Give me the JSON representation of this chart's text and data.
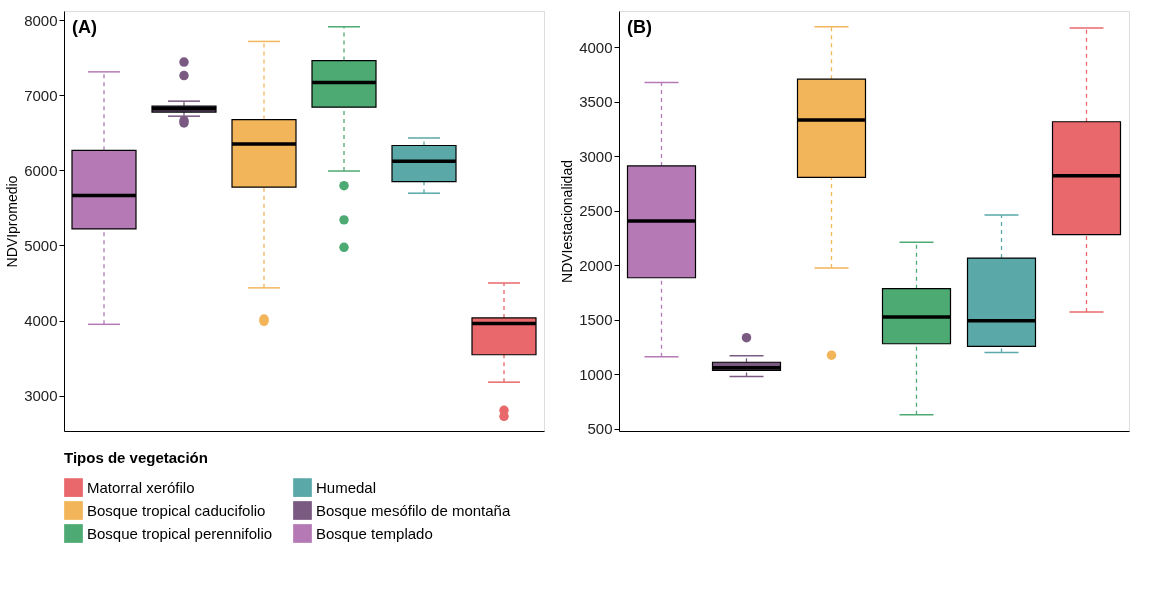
{
  "chart_data": [
    {
      "type": "box",
      "title": "(A)",
      "ylabel": "NDVIpromedio",
      "categories": [
        null,
        null,
        null,
        null,
        null,
        null
      ],
      "ylim": [
        2530,
        8120
      ],
      "yticks": [
        3000,
        4000,
        5000,
        6000,
        7000,
        8000
      ],
      "tick_labels": "y",
      "grid": false,
      "legend": "bottom",
      "legend_title": "Tipos de vegetación",
      "series": [
        {
          "name": "Matorral xerófilo",
          "color": "#e8686b",
          "boxes": [
            null,
            null,
            null,
            null,
            null,
            {
              "low": 3180,
              "q1": 3545,
              "median": 3960,
              "q3": 4035,
              "high": 4500,
              "outliers": [
                2805,
                2725
              ]
            }
          ]
        },
        {
          "name": "Bosque tropical caducifolio",
          "color": "#f2b55a",
          "boxes": [
            null,
            null,
            {
              "low": 4435,
              "q1": 5775,
              "median": 6350,
              "q3": 6675,
              "high": 7715,
              "outliers": [
                4020,
                3990
              ]
            },
            null,
            null,
            null
          ]
        },
        {
          "name": "Bosque tropical perennifolio",
          "color": "#4daa72",
          "boxes": [
            null,
            null,
            null,
            {
              "low": 5990,
              "q1": 6840,
              "median": 7170,
              "q3": 7460,
              "high": 7910,
              "outliers": [
                5795,
                5340,
                4975
              ]
            },
            null,
            null
          ]
        },
        {
          "name": "Humedal",
          "color": "#5aa8a8",
          "boxes": [
            null,
            null,
            null,
            null,
            {
              "low": 5695,
              "q1": 5850,
              "median": 6120,
              "q3": 6330,
              "high": 6430
            },
            null
          ]
        },
        {
          "name": "Bosque mesófilo de montaña",
          "color": "#7b5a82",
          "boxes": [
            null,
            {
              "low": 6720,
              "q1": 6775,
              "median": 6820,
              "q3": 6855,
              "high": 6920,
              "outliers": [
                7440,
                7260,
                6660,
                6630
              ]
            },
            null,
            null,
            null,
            null
          ]
        },
        {
          "name": "Bosque templado",
          "color": "#b57ab5",
          "boxes": [
            {
              "low": 3950,
              "q1": 5220,
              "median": 5665,
              "q3": 6265,
              "high": 7310
            },
            null,
            null,
            null,
            null,
            null
          ]
        }
      ]
    },
    {
      "type": "box",
      "title": "(B)",
      "ylabel": "NDVIestacionalidad",
      "categories": [
        null,
        null,
        null,
        null,
        null,
        null
      ],
      "ylim": [
        480,
        4330
      ],
      "yticks": [
        500,
        1000,
        1500,
        2000,
        2500,
        3000,
        3500,
        4000
      ],
      "tick_labels": "y",
      "grid": false,
      "series": [
        {
          "color": "#e8686b",
          "boxes": [
            null,
            null,
            null,
            null,
            null,
            {
              "low": 1570,
              "q1": 2280,
              "median": 2820,
              "q3": 3315,
              "high": 4175
            }
          ]
        },
        {
          "color": "#f2b55a",
          "boxes": [
            null,
            null,
            {
              "low": 1975,
              "q1": 2805,
              "median": 3330,
              "q3": 3705,
              "high": 4185,
              "outliers": [
                1175
              ]
            },
            null,
            null,
            null
          ]
        },
        {
          "color": "#4daa72",
          "boxes": [
            null,
            null,
            null,
            {
              "low": 630,
              "q1": 1280,
              "median": 1525,
              "q3": 1785,
              "high": 2210
            },
            null,
            null
          ]
        },
        {
          "color": "#5aa8a8",
          "boxes": [
            null,
            null,
            null,
            null,
            {
              "low": 1200,
              "q1": 1255,
              "median": 1490,
              "q3": 2065,
              "high": 2460
            },
            null
          ]
        },
        {
          "color": "#7b5a82",
          "boxes": [
            null,
            {
              "low": 980,
              "q1": 1035,
              "median": 1060,
              "q3": 1110,
              "high": 1170,
              "outliers": [
                1335
              ]
            },
            null,
            null,
            null,
            null
          ]
        },
        {
          "color": "#b57ab5",
          "boxes": [
            {
              "low": 1160,
              "q1": 1885,
              "median": 2405,
              "q3": 2910,
              "high": 3675
            },
            null,
            null,
            null,
            null,
            null
          ]
        }
      ]
    }
  ]
}
